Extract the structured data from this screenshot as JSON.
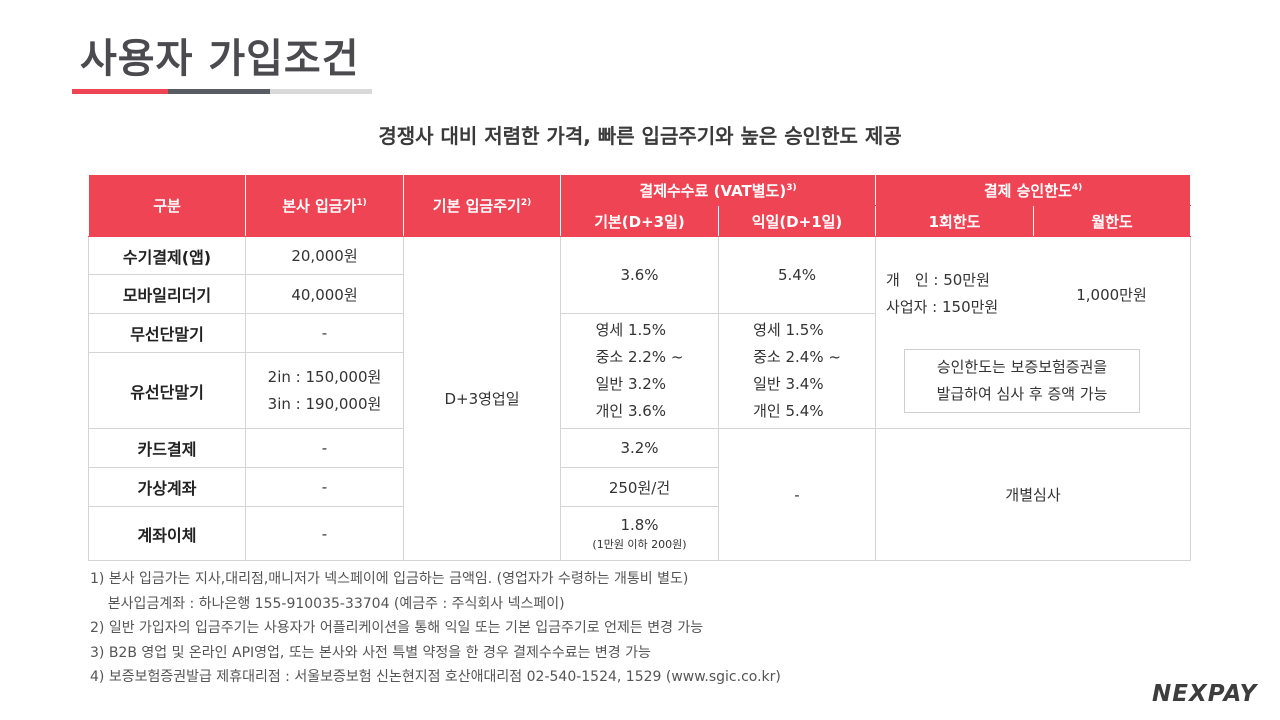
{
  "page": {
    "title": "사용자 가입조건",
    "subtitle": "경쟁사 대비 저렴한 가격, 빠른 입금주기와 높은 승인한도 제공",
    "colors": {
      "accent": "#ef4454",
      "dark": "#5a5c63",
      "light": "#d9d9d9"
    }
  },
  "table": {
    "headers": {
      "category": "구분",
      "deposit": "본사 입금가",
      "deposit_sup": "1)",
      "cycle": "기본 입금주기",
      "cycle_sup": "2)",
      "fee": "결제수수료 (VAT별도)",
      "fee_sup": "3)",
      "fee_basic": "기본(D+3일)",
      "fee_next": "익일(D+1일)",
      "limit": "결제 승인한도",
      "limit_sup": "4)",
      "limit_once": "1회한도",
      "limit_month": "월한도"
    },
    "rows": [
      {
        "label": "수기결제(앱)",
        "deposit": "20,000원"
      },
      {
        "label": "모바일리더기",
        "deposit": "40,000원"
      },
      {
        "label": "무선단말기",
        "deposit": "-"
      },
      {
        "label": "유선단말기",
        "deposit_1": "2in : 150,000원",
        "deposit_2": "3in : 190,000원"
      },
      {
        "label": "카드결제",
        "deposit": "-"
      },
      {
        "label": "가상계좌",
        "deposit": "-"
      },
      {
        "label": "계좌이체",
        "deposit": "-"
      }
    ],
    "cycle_value": "D+3영업일",
    "fee_app_basic": "3.6%",
    "fee_app_next": "5.4%",
    "fee_terminal_basic": [
      "영세 1.5%",
      "중소 2.2% ~",
      "일반 3.2%",
      "개인 3.6%"
    ],
    "fee_terminal_next": [
      "영세 1.5%",
      "중소 2.4% ~",
      "일반 3.4%",
      "개인 5.4%"
    ],
    "fee_card": "3.2%",
    "fee_virtual": "250원/건",
    "fee_transfer": "1.8%",
    "fee_transfer_note": "(1만원 이하 200원)",
    "fee_next_other": "-",
    "limit_personal": "개　인 :  50만원",
    "limit_business": "사업자 : 150만원",
    "limit_month_value": "1,000만원",
    "limit_note_1": "승인한도는 보증보험증권을",
    "limit_note_2": "발급하여 심사 후 증액 가능",
    "limit_other": "개별심사"
  },
  "notes": [
    "1) 본사 입금가는 지사,대리점,매니저가 넥스페이에 입금하는 금액임. (영업자가 수령하는 개통비 별도)",
    "    본사입금계좌 : 하나은행 155-910035-33704 (예금주 : 주식회사 넥스페이)",
    "2) 일반 가입자의 입금주기는 사용자가 어플리케이션을 통해 익일 또는 기본 입금주기로 언제든 변경 가능",
    "3) B2B 영업 및 온라인 API영업, 또는 본사와 사전 특별 약정을 한 경우 결제수수료는 변경 가능",
    "4) 보증보험증권발급 제휴대리점 : 서울보증보험 신논현지점 호산애대리점 02-540-1524, 1529 (www.sgic.co.kr)"
  ],
  "logo": "NEXPAY"
}
